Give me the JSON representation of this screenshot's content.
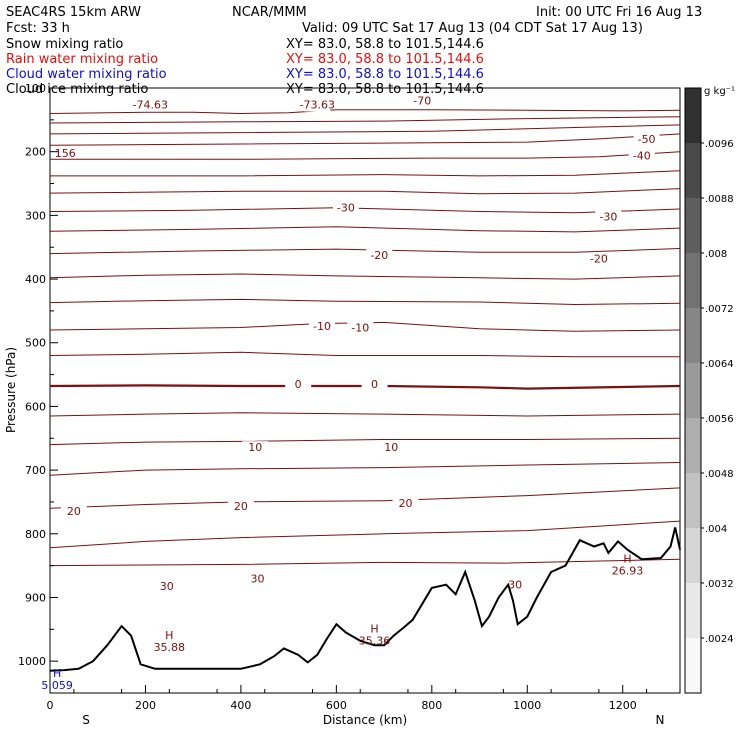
{
  "header": {
    "model": "SEAC4RS 15km ARW",
    "center": "NCAR/MMM",
    "init": "Init: 00 UTC Fri 16 Aug 13",
    "fcst": "Fcst:   33 h",
    "valid": "Valid: 09 UTC Sat 17 Aug 13 (04 CDT Sat 17 Aug 13)"
  },
  "fields": [
    {
      "name": "Snow mixing ratio",
      "xy": "XY=  83.0, 58.8 to 101.5,144.6",
      "color": "#000000"
    },
    {
      "name": "Rain water mixing ratio",
      "xy": "XY=  83.0, 58.8 to 101.5,144.6",
      "color": "#e01010"
    },
    {
      "name": "Cloud water mixing ratio",
      "xy": "XY=  83.0, 58.8 to 101.5,144.6",
      "color": "#1010c0"
    },
    {
      "name": "Cloud ice mixing ratio",
      "xy": "XY=  83.0, 58.8 to 101.5,144.6",
      "color": "#000000"
    }
  ],
  "colorbar": {
    "unit": "g kg⁻¹",
    "labels": [
      ".0096",
      ".0088",
      ".008",
      ".0072",
      ".0064",
      ".0056",
      ".0048",
      ".004",
      ".0032",
      ".0024"
    ],
    "colors": [
      "#303030",
      "#4a4a4a",
      "#5e5e5e",
      "#727272",
      "#868686",
      "#9a9a9a",
      "#aeaeae",
      "#c2c2c2",
      "#d6d6d6",
      "#e8e8e8",
      "#f8f8f8"
    ]
  },
  "chart_data": {
    "type": "line",
    "title": "",
    "xlabel": "Distance (km)",
    "ylabel": "Pressure (hPa)",
    "xlim": [
      0,
      1320
    ],
    "ylim": [
      1050,
      100
    ],
    "x_ticks": [
      0,
      200,
      400,
      600,
      800,
      1000,
      1200
    ],
    "y_ticks": [
      1000,
      900,
      800,
      700,
      600,
      500,
      400,
      300,
      200,
      100
    ],
    "end_labels": {
      "left": "S",
      "right": "N"
    },
    "contour_color": "#7a1010",
    "isotherms": [
      {
        "points": [
          [
            0,
            140
          ],
          [
            200,
            138
          ],
          [
            300,
            138
          ],
          [
            400,
            140
          ],
          [
            500,
            139
          ],
          [
            600,
            134
          ],
          [
            800,
            134
          ],
          [
            1000,
            135
          ],
          [
            1200,
            136
          ],
          [
            1320,
            135
          ]
        ],
        "bold": false,
        "labels": [
          {
            "x": 210,
            "p": 126,
            "text": "-74.63"
          },
          {
            "x": 560,
            "p": 126,
            "text": "-73.63"
          },
          {
            "x": 780,
            "p": 120,
            "text": "-70"
          }
        ]
      },
      {
        "points": [
          [
            0,
            155
          ],
          [
            400,
            153
          ],
          [
            700,
            152
          ],
          [
            1000,
            148
          ],
          [
            1320,
            145
          ]
        ],
        "bold": false,
        "labels": []
      },
      {
        "points": [
          [
            0,
            172
          ],
          [
            400,
            170
          ],
          [
            800,
            168
          ],
          [
            1100,
            162
          ],
          [
            1320,
            158
          ]
        ],
        "bold": false,
        "labels": []
      },
      {
        "points": [
          [
            0,
            190
          ],
          [
            400,
            188
          ],
          [
            800,
            186
          ],
          [
            1000,
            185
          ],
          [
            1150,
            180
          ],
          [
            1320,
            172
          ]
        ],
        "bold": false,
        "labels": [
          {
            "x": 1250,
            "p": 180,
            "text": "-50"
          }
        ]
      },
      {
        "points": [
          [
            0,
            212
          ],
          [
            400,
            212
          ],
          [
            800,
            210
          ],
          [
            1000,
            210
          ],
          [
            1150,
            208
          ],
          [
            1320,
            200
          ]
        ],
        "bold": false,
        "labels": [
          {
            "x": 1240,
            "p": 206,
            "text": "-40"
          }
        ]
      },
      {
        "points": [
          [
            0,
            238
          ],
          [
            400,
            238
          ],
          [
            700,
            236
          ],
          [
            900,
            238
          ],
          [
            1100,
            237
          ],
          [
            1320,
            230
          ]
        ],
        "bold": false,
        "labels": []
      },
      {
        "points": [
          [
            0,
            265
          ],
          [
            400,
            262
          ],
          [
            700,
            262
          ],
          [
            900,
            266
          ],
          [
            1100,
            265
          ],
          [
            1320,
            258
          ]
        ],
        "bold": false,
        "labels": []
      },
      {
        "points": [
          [
            0,
            294
          ],
          [
            300,
            292
          ],
          [
            600,
            288
          ],
          [
            900,
            294
          ],
          [
            1100,
            296
          ],
          [
            1320,
            290
          ]
        ],
        "bold": false,
        "labels": [
          {
            "x": 620,
            "p": 288,
            "text": "-30"
          },
          {
            "x": 1170,
            "p": 302,
            "text": "-30"
          }
        ]
      },
      {
        "points": [
          [
            0,
            325
          ],
          [
            300,
            322
          ],
          [
            600,
            318
          ],
          [
            900,
            324
          ],
          [
            1100,
            326
          ],
          [
            1320,
            320
          ]
        ],
        "bold": false,
        "labels": []
      },
      {
        "points": [
          [
            0,
            360
          ],
          [
            300,
            356
          ],
          [
            600,
            353
          ],
          [
            900,
            358
          ],
          [
            1100,
            358
          ],
          [
            1320,
            352
          ]
        ],
        "bold": false,
        "labels": [
          {
            "x": 690,
            "p": 362,
            "text": "-20"
          },
          {
            "x": 1150,
            "p": 368,
            "text": "-20"
          }
        ]
      },
      {
        "points": [
          [
            0,
            398
          ],
          [
            200,
            394
          ],
          [
            400,
            392
          ],
          [
            600,
            395
          ],
          [
            900,
            398
          ],
          [
            1100,
            400
          ],
          [
            1320,
            395
          ]
        ],
        "bold": false,
        "labels": []
      },
      {
        "points": [
          [
            0,
            437
          ],
          [
            200,
            434
          ],
          [
            400,
            432
          ],
          [
            600,
            435
          ],
          [
            900,
            436
          ],
          [
            1100,
            440
          ],
          [
            1320,
            438
          ]
        ],
        "bold": false,
        "labels": []
      },
      {
        "points": [
          [
            0,
            480
          ],
          [
            200,
            478
          ],
          [
            400,
            476
          ],
          [
            560,
            470
          ],
          [
            700,
            468
          ],
          [
            900,
            478
          ],
          [
            1100,
            482
          ],
          [
            1320,
            480
          ]
        ],
        "bold": false,
        "labels": [
          {
            "x": 570,
            "p": 474,
            "text": "-10"
          },
          {
            "x": 650,
            "p": 476,
            "text": "-10"
          }
        ]
      },
      {
        "points": [
          [
            0,
            520
          ],
          [
            200,
            518
          ],
          [
            400,
            515
          ],
          [
            600,
            520
          ],
          [
            900,
            520
          ],
          [
            1100,
            522
          ],
          [
            1320,
            522
          ]
        ],
        "bold": false,
        "labels": []
      },
      {
        "points": [
          [
            0,
            568
          ],
          [
            200,
            567
          ],
          [
            400,
            568
          ],
          [
            700,
            568
          ],
          [
            900,
            570
          ],
          [
            1000,
            572
          ],
          [
            1320,
            568
          ]
        ],
        "bold": true,
        "labels": [
          {
            "x": 520,
            "p": 565,
            "text": "0"
          },
          {
            "x": 680,
            "p": 565,
            "text": "0"
          }
        ]
      },
      {
        "points": [
          [
            0,
            615
          ],
          [
            200,
            612
          ],
          [
            400,
            610
          ],
          [
            700,
            612
          ],
          [
            1000,
            615
          ],
          [
            1320,
            612
          ]
        ],
        "bold": false,
        "labels": []
      },
      {
        "points": [
          [
            0,
            660
          ],
          [
            200,
            656
          ],
          [
            400,
            655
          ],
          [
            700,
            652
          ],
          [
            1000,
            652
          ],
          [
            1320,
            650
          ]
        ],
        "bold": false,
        "labels": [
          {
            "x": 430,
            "p": 664,
            "text": "10"
          },
          {
            "x": 715,
            "p": 664,
            "text": "10"
          }
        ]
      },
      {
        "points": [
          [
            0,
            708
          ],
          [
            200,
            700
          ],
          [
            400,
            698
          ],
          [
            700,
            696
          ],
          [
            1000,
            692
          ],
          [
            1320,
            688
          ]
        ],
        "bold": false,
        "labels": []
      },
      {
        "points": [
          [
            0,
            760
          ],
          [
            200,
            754
          ],
          [
            400,
            750
          ],
          [
            700,
            748
          ],
          [
            1000,
            740
          ],
          [
            1320,
            728
          ]
        ],
        "bold": false,
        "labels": [
          {
            "x": 50,
            "p": 764,
            "text": "20"
          },
          {
            "x": 400,
            "p": 756,
            "text": "20"
          },
          {
            "x": 745,
            "p": 752,
            "text": "20"
          }
        ]
      },
      {
        "points": [
          [
            0,
            822
          ],
          [
            200,
            812
          ],
          [
            400,
            806
          ],
          [
            700,
            800
          ],
          [
            1000,
            795
          ],
          [
            1320,
            780
          ]
        ],
        "bold": false,
        "labels": []
      },
      {
        "points": [
          [
            0,
            850
          ],
          [
            400,
            848
          ],
          [
            700,
            845
          ],
          [
            950,
            846
          ],
          [
            1320,
            840
          ]
        ],
        "bold": false,
        "labels": []
      }
    ],
    "terrain": [
      [
        0,
        1015
      ],
      [
        30,
        1014
      ],
      [
        60,
        1012
      ],
      [
        90,
        1000
      ],
      [
        120,
        975
      ],
      [
        150,
        945
      ],
      [
        170,
        960
      ],
      [
        190,
        1005
      ],
      [
        220,
        1012
      ],
      [
        300,
        1012
      ],
      [
        400,
        1012
      ],
      [
        440,
        1005
      ],
      [
        470,
        992
      ],
      [
        490,
        980
      ],
      [
        520,
        990
      ],
      [
        540,
        1002
      ],
      [
        560,
        990
      ],
      [
        580,
        965
      ],
      [
        600,
        942
      ],
      [
        620,
        955
      ],
      [
        650,
        968
      ],
      [
        680,
        975
      ],
      [
        700,
        975
      ],
      [
        720,
        960
      ],
      [
        740,
        948
      ],
      [
        760,
        935
      ],
      [
        780,
        910
      ],
      [
        800,
        885
      ],
      [
        830,
        880
      ],
      [
        850,
        895
      ],
      [
        870,
        860
      ],
      [
        890,
        905
      ],
      [
        905,
        945
      ],
      [
        920,
        930
      ],
      [
        940,
        900
      ],
      [
        960,
        880
      ],
      [
        970,
        905
      ],
      [
        980,
        942
      ],
      [
        1000,
        930
      ],
      [
        1020,
        900
      ],
      [
        1050,
        860
      ],
      [
        1080,
        850
      ],
      [
        1110,
        810
      ],
      [
        1140,
        820
      ],
      [
        1160,
        815
      ],
      [
        1170,
        830
      ],
      [
        1190,
        812
      ],
      [
        1210,
        825
      ],
      [
        1240,
        840
      ],
      [
        1280,
        838
      ],
      [
        1300,
        820
      ],
      [
        1310,
        790
      ],
      [
        1320,
        825
      ]
    ],
    "extrema": [
      {
        "type": "H",
        "value": "35.88",
        "x": 250,
        "p": 965
      },
      {
        "type": "H",
        "value": "35.36",
        "x": 680,
        "p": 955
      },
      {
        "type": "H",
        "value": "26.93",
        "x": 1210,
        "p": 845
      },
      {
        "type": "H",
        "value": "5.059",
        "x": 15,
        "p": 1025,
        "color": "#1010c0"
      }
    ],
    "other_labels": [
      {
        "x": 960,
        "p": 880,
        "text": "30"
      },
      {
        "x": 230,
        "p": 882,
        "text": "30"
      },
      {
        "x": 420,
        "p": 870,
        "text": "30"
      },
      {
        "x": 10,
        "p": 202,
        "text": "156"
      }
    ]
  }
}
